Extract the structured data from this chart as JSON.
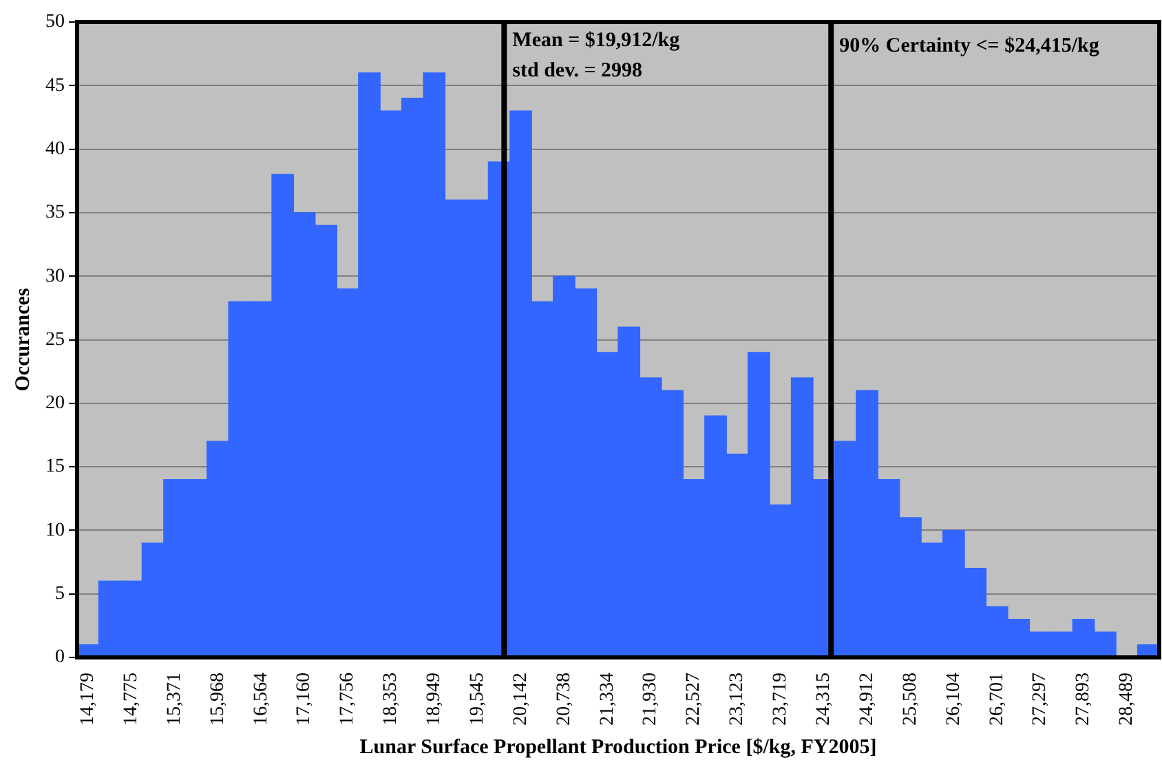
{
  "chart_data": {
    "type": "histogram",
    "xlabel": "Lunar Surface Propellant Production Price [$/kg, FY2005]",
    "ylabel": "Occurances",
    "bins": [
      14030,
      14328,
      14626,
      14924,
      15223,
      15521,
      15819,
      16117,
      16415,
      16713,
      17011,
      17309,
      17608,
      17906,
      18204,
      18502,
      18800,
      19098,
      19396,
      19694,
      19993,
      20291,
      20589,
      20887,
      21185,
      21483,
      21781,
      22079,
      22378,
      22676,
      22974,
      23272,
      23570,
      23868,
      24166,
      24464,
      24763,
      25061,
      25359,
      25657,
      25955,
      26253,
      26551,
      26849,
      27148,
      27446,
      27744,
      28042,
      28340,
      28638,
      28936
    ],
    "values": [
      1,
      6,
      6,
      9,
      14,
      14,
      17,
      28,
      28,
      38,
      35,
      34,
      29,
      46,
      43,
      44,
      46,
      36,
      36,
      39,
      43,
      28,
      30,
      29,
      24,
      26,
      22,
      21,
      14,
      19,
      16,
      24,
      12,
      22,
      14,
      17,
      21,
      14,
      11,
      9,
      10,
      7,
      4,
      3,
      2,
      2,
      3,
      2,
      0,
      1
    ],
    "color": "#3366ff",
    "xlim": [
      14030,
      28936
    ],
    "xticks": [
      {
        "value": 14179,
        "label": "14,179"
      },
      {
        "value": 14775,
        "label": "14,775"
      },
      {
        "value": 15371,
        "label": "15,371"
      },
      {
        "value": 15968,
        "label": "15,968"
      },
      {
        "value": 16564,
        "label": "16,564"
      },
      {
        "value": 17160,
        "label": "17,160"
      },
      {
        "value": 17756,
        "label": "17,756"
      },
      {
        "value": 18353,
        "label": "18,353"
      },
      {
        "value": 18949,
        "label": "18,949"
      },
      {
        "value": 19545,
        "label": "19,545"
      },
      {
        "value": 20142,
        "label": "20,142"
      },
      {
        "value": 20738,
        "label": "20,738"
      },
      {
        "value": 21334,
        "label": "21,334"
      },
      {
        "value": 21930,
        "label": "21,930"
      },
      {
        "value": 22527,
        "label": "22,527"
      },
      {
        "value": 23123,
        "label": "23,123"
      },
      {
        "value": 23719,
        "label": "23,719"
      },
      {
        "value": 24315,
        "label": "24,315"
      },
      {
        "value": 24912,
        "label": "24,912"
      },
      {
        "value": 25508,
        "label": "25,508"
      },
      {
        "value": 26104,
        "label": "26,104"
      },
      {
        "value": 26701,
        "label": "26,701"
      },
      {
        "value": 27297,
        "label": "27,297"
      },
      {
        "value": 27893,
        "label": "27,893"
      },
      {
        "value": 28489,
        "label": "28,489"
      }
    ],
    "ylim": [
      0,
      50
    ],
    "yticks": [
      0,
      5,
      10,
      15,
      20,
      25,
      30,
      35,
      40,
      45,
      50
    ],
    "grid": "y",
    "legend": false,
    "ref_lines": [
      {
        "axis": "x",
        "value": 19912,
        "label": "Mean = $19,912/kg",
        "color": "#000000"
      },
      {
        "axis": "x",
        "value": 24415,
        "label": "90% Certainty <= $24,415/kg",
        "color": "#000000"
      }
    ],
    "annotations": [
      "std dev. = 2998"
    ]
  }
}
